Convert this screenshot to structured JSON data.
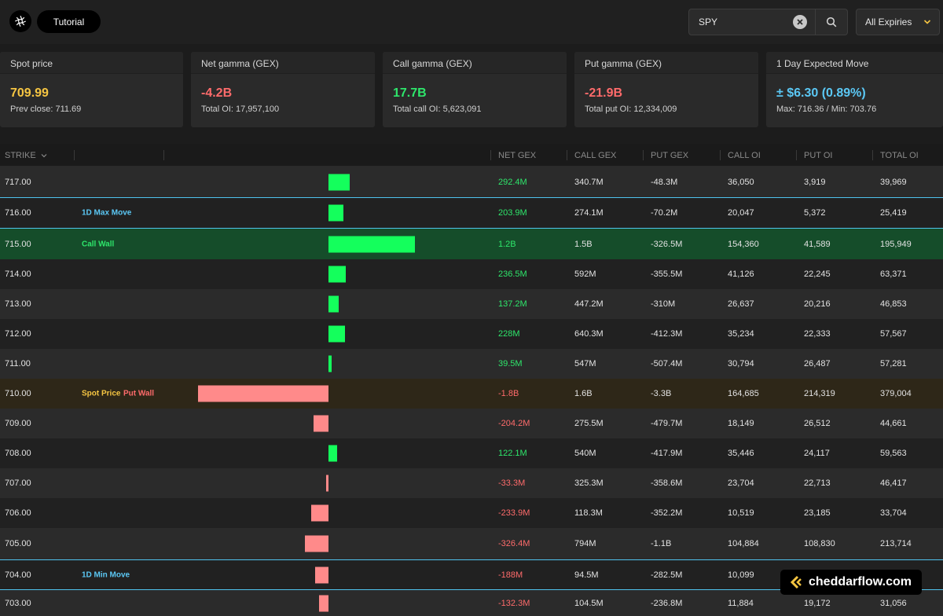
{
  "header": {
    "tutorial_label": "Tutorial",
    "search": {
      "value": "SPY"
    },
    "expiry_select": "All Expiries"
  },
  "cards": [
    {
      "title": "Spot price",
      "value": "709.99",
      "sub": "Prev close: 711.69",
      "color": "#f5c542"
    },
    {
      "title": "Net gamma (GEX)",
      "value": "-4.2B",
      "sub": "Total OI: 17,957,100",
      "color": "#ff6b6b"
    },
    {
      "title": "Call gamma (GEX)",
      "value": "17.7B",
      "sub": "Total call OI: 5,623,091",
      "color": "#2ee66b"
    },
    {
      "title": "Put gamma (GEX)",
      "value": "-21.9B",
      "sub": "Total put OI: 12,334,009",
      "color": "#ff6b6b"
    },
    {
      "title": "1 Day Expected Move",
      "value": "± $6.30 (0.89%)",
      "sub": "Max: 716.36 / Min: 703.76",
      "color": "#5bc8f5"
    }
  ],
  "table": {
    "columns": [
      "STRIKE",
      "NET GEX",
      "CALL GEX",
      "PUT GEX",
      "CALL OI",
      "PUT OI",
      "TOTAL OI"
    ],
    "rows": [
      {
        "strike": "717.00",
        "tag": "",
        "tag2": "",
        "net_gex_value": 0.2924,
        "net_gex": "292.4M",
        "call_gex": "340.7M",
        "put_gex": "-48.3M",
        "call_oi": "36,050",
        "put_oi": "3,919",
        "total_oi": "39,969"
      },
      {
        "strike": "716.00",
        "tag": "1D Max Move",
        "tag2": "",
        "net_gex_value": 0.2039,
        "net_gex": "203.9M",
        "call_gex": "274.1M",
        "put_gex": "-70.2M",
        "call_oi": "20,047",
        "put_oi": "5,372",
        "total_oi": "25,419"
      },
      {
        "strike": "715.00",
        "tag": "Call Wall",
        "tag2": "",
        "net_gex_value": 1.2,
        "net_gex": "1.2B",
        "call_gex": "1.5B",
        "put_gex": "-326.5M",
        "call_oi": "154,360",
        "put_oi": "41,589",
        "total_oi": "195,949"
      },
      {
        "strike": "714.00",
        "tag": "",
        "tag2": "",
        "net_gex_value": 0.2365,
        "net_gex": "236.5M",
        "call_gex": "592M",
        "put_gex": "-355.5M",
        "call_oi": "41,126",
        "put_oi": "22,245",
        "total_oi": "63,371"
      },
      {
        "strike": "713.00",
        "tag": "",
        "tag2": "",
        "net_gex_value": 0.1372,
        "net_gex": "137.2M",
        "call_gex": "447.2M",
        "put_gex": "-310M",
        "call_oi": "26,637",
        "put_oi": "20,216",
        "total_oi": "46,853"
      },
      {
        "strike": "712.00",
        "tag": "",
        "tag2": "",
        "net_gex_value": 0.228,
        "net_gex": "228M",
        "call_gex": "640.3M",
        "put_gex": "-412.3M",
        "call_oi": "35,234",
        "put_oi": "22,333",
        "total_oi": "57,567"
      },
      {
        "strike": "711.00",
        "tag": "",
        "tag2": "",
        "net_gex_value": 0.0395,
        "net_gex": "39.5M",
        "call_gex": "547M",
        "put_gex": "-507.4M",
        "call_oi": "30,794",
        "put_oi": "26,487",
        "total_oi": "57,281"
      },
      {
        "strike": "710.00",
        "tag": "Spot Price",
        "tag2": "Put Wall",
        "net_gex_value": -1.8,
        "net_gex": "-1.8B",
        "call_gex": "1.6B",
        "put_gex": "-3.3B",
        "call_oi": "164,685",
        "put_oi": "214,319",
        "total_oi": "379,004"
      },
      {
        "strike": "709.00",
        "tag": "",
        "tag2": "",
        "net_gex_value": -0.2042,
        "net_gex": "-204.2M",
        "call_gex": "275.5M",
        "put_gex": "-479.7M",
        "call_oi": "18,149",
        "put_oi": "26,512",
        "total_oi": "44,661"
      },
      {
        "strike": "708.00",
        "tag": "",
        "tag2": "",
        "net_gex_value": 0.1221,
        "net_gex": "122.1M",
        "call_gex": "540M",
        "put_gex": "-417.9M",
        "call_oi": "35,446",
        "put_oi": "24,117",
        "total_oi": "59,563"
      },
      {
        "strike": "707.00",
        "tag": "",
        "tag2": "",
        "net_gex_value": -0.0333,
        "net_gex": "-33.3M",
        "call_gex": "325.3M",
        "put_gex": "-358.6M",
        "call_oi": "23,704",
        "put_oi": "22,713",
        "total_oi": "46,417"
      },
      {
        "strike": "706.00",
        "tag": "",
        "tag2": "",
        "net_gex_value": -0.2339,
        "net_gex": "-233.9M",
        "call_gex": "118.3M",
        "put_gex": "-352.2M",
        "call_oi": "10,519",
        "put_oi": "23,185",
        "total_oi": "33,704"
      },
      {
        "strike": "705.00",
        "tag": "",
        "tag2": "",
        "net_gex_value": -0.3264,
        "net_gex": "-326.4M",
        "call_gex": "794M",
        "put_gex": "-1.1B",
        "call_oi": "104,884",
        "put_oi": "108,830",
        "total_oi": "213,714"
      },
      {
        "strike": "704.00",
        "tag": "1D Min Move",
        "tag2": "",
        "net_gex_value": -0.188,
        "net_gex": "-188M",
        "call_gex": "94.5M",
        "put_gex": "-282.5M",
        "call_oi": "10,099",
        "put_oi": "",
        "total_oi": ""
      },
      {
        "strike": "703.00",
        "tag": "",
        "tag2": "",
        "net_gex_value": -0.1323,
        "net_gex": "-132.3M",
        "call_gex": "104.5M",
        "put_gex": "-236.8M",
        "call_oi": "11,884",
        "put_oi": "19,172",
        "total_oi": "31,056"
      }
    ]
  },
  "watermark": "cheddarflow.com",
  "colors": {
    "positive_bar": "#14ff5c",
    "negative_bar": "#ff8a8a",
    "positive_text": "#2ee66b",
    "negative_text": "#ff6b6b",
    "tag_blue": "#5bc8f5",
    "tag_green": "#2ee66b",
    "tag_yellow": "#f5c542",
    "tag_red": "#ff6b6b"
  }
}
